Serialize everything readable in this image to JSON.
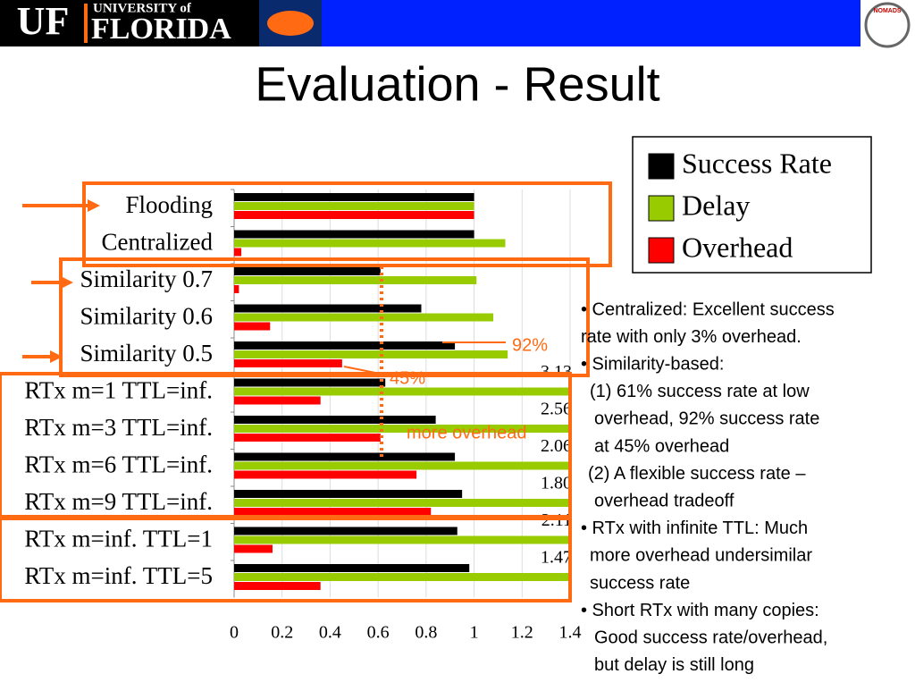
{
  "header": {
    "logo_mark": "UF",
    "logo_line1": "UNIVERSITY of",
    "logo_line2": "FLORIDA",
    "right_logo": "NOMADS"
  },
  "title": "Evaluation - Result",
  "chart_data": {
    "type": "hbar",
    "categories": [
      "Flooding",
      "Centralized",
      "Similarity 0.7",
      "Similarity 0.6",
      "Similarity 0.5",
      "RTx m=1 TTL=inf.",
      "RTx m=3 TTL=inf.",
      "RTx m=6 TTL=inf.",
      "RTx m=9 TTL=inf.",
      "RTx m=inf. TTL=1",
      "RTx m=inf. TTL=5"
    ],
    "series": [
      {
        "name": "Success Rate",
        "color": "#000000",
        "values": [
          1.0,
          1.0,
          0.61,
          0.78,
          0.92,
          0.63,
          0.84,
          0.92,
          0.95,
          0.93,
          0.98
        ]
      },
      {
        "name": "Delay",
        "color": "#99cc00",
        "values": [
          1.0,
          1.13,
          1.01,
          1.08,
          1.14,
          3.13,
          2.56,
          2.06,
          1.8,
          2.11,
          1.47
        ],
        "value_labels": [
          null,
          null,
          null,
          null,
          null,
          "3.13",
          "2.56",
          "2.06",
          "1.80",
          "2.11",
          "1.47"
        ]
      },
      {
        "name": "Overhead",
        "color": "#ff0000",
        "values": [
          1.0,
          0.03,
          0.02,
          0.15,
          0.45,
          0.36,
          0.61,
          0.76,
          0.82,
          0.16,
          0.36
        ]
      }
    ],
    "xlim": [
      0,
      1.4
    ],
    "xticks": [
      0,
      0.2,
      0.4,
      0.6,
      0.8,
      1,
      1.2,
      1.4
    ],
    "grid": true,
    "legend": "upper right",
    "annotations": [
      "92%",
      "45%",
      "more overhead"
    ]
  },
  "notes": [
    "• Centralized: Excellent success",
    "rate with only 3% overhead.",
    "• Similarity-based:",
    "(1) 61% success rate at low",
    "overhead, 92% success rate",
    "at 45% overhead",
    "(2) A flexible success rate –",
    "overhead tradeoff",
    "• RTx with infinite TTL: Much",
    "more overhead undersimilar",
    "success rate",
    "• Short RTx with many copies:",
    "Good success rate/overhead,",
    "but delay is still long"
  ]
}
